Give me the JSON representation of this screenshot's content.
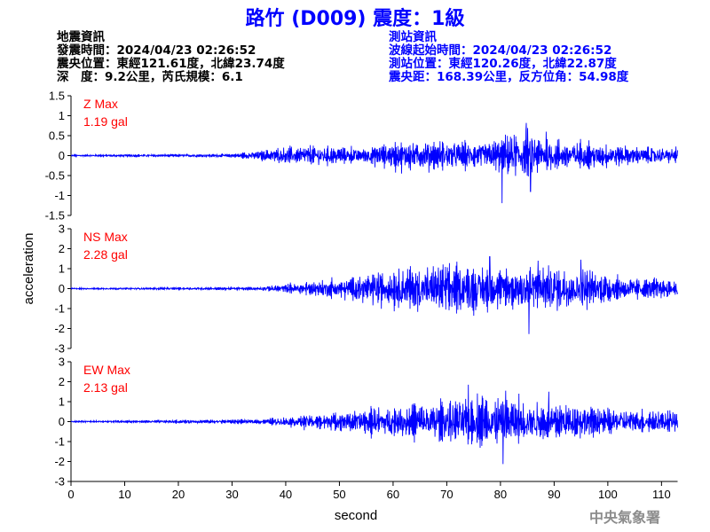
{
  "title": "路竹 (D009) 震度：1級",
  "quake_info": {
    "heading": "地震資訊",
    "origin_time": "發震時間：2024/04/23 02:26:52",
    "epicenter": "震央位置：東經121.61度，北緯23.74度",
    "depth_magnitude": "深　度：9.2公里，芮氏規模：6.1"
  },
  "station_info": {
    "heading": "測站資訊",
    "wave_start": "波線起始時間：2024/04/23 02:26:52",
    "location": "測站位置：東經120.26度，北緯22.87度",
    "distance": "震央距：168.39公里，反方位角：54.98度"
  },
  "credit": "中央氣象署",
  "colors": {
    "title": "#0000ff",
    "trace": "#0000ff",
    "max_label": "#ff0000",
    "station_info": "#0000ff",
    "credit": "#8c8c8c"
  },
  "chart_data": {
    "type": "line",
    "xlabel": "second",
    "ylabel": "acceleration",
    "xlim": [
      0,
      113
    ],
    "x_ticks": [
      0,
      10,
      20,
      30,
      40,
      50,
      60,
      70,
      80,
      90,
      100,
      110
    ],
    "panels": [
      {
        "name": "Z",
        "max_title": "Z Max",
        "max_value": "1.19 gal",
        "ylim": [
          -1.5,
          1.5
        ],
        "y_ticks": [
          1.5,
          1,
          0.5,
          0,
          -0.5,
          -1,
          -1.5
        ],
        "envelope": [
          [
            0,
            0.03
          ],
          [
            30,
            0.06
          ],
          [
            38,
            0.25
          ],
          [
            45,
            0.35
          ],
          [
            55,
            0.25
          ],
          [
            60,
            0.45
          ],
          [
            70,
            0.5
          ],
          [
            75,
            0.45
          ],
          [
            80,
            0.55
          ],
          [
            84,
            0.85
          ],
          [
            88,
            0.6
          ],
          [
            95,
            0.45
          ],
          [
            105,
            0.3
          ],
          [
            113,
            0.25
          ]
        ],
        "peaks": [
          [
            80.3,
            -1.19
          ],
          [
            84.8,
            0.82
          ],
          [
            85.6,
            -0.9
          ],
          [
            88.5,
            0.6
          ]
        ]
      },
      {
        "name": "NS",
        "max_title": "NS Max",
        "max_value": "2.28 gal",
        "ylim": [
          -3,
          3
        ],
        "y_ticks": [
          3,
          2,
          1,
          0,
          -1,
          -2,
          -3
        ],
        "envelope": [
          [
            0,
            0.05
          ],
          [
            35,
            0.1
          ],
          [
            40,
            0.3
          ],
          [
            50,
            0.7
          ],
          [
            60,
            1.3
          ],
          [
            65,
            1.5
          ],
          [
            75,
            1.6
          ],
          [
            80,
            1.5
          ],
          [
            85,
            1.7
          ],
          [
            95,
            1.3
          ],
          [
            103,
            0.8
          ],
          [
            113,
            0.6
          ]
        ],
        "peaks": [
          [
            78,
            1.6
          ],
          [
            85.3,
            -2.28
          ],
          [
            87,
            1.4
          ],
          [
            95,
            1.45
          ]
        ]
      },
      {
        "name": "EW",
        "max_title": "EW Max",
        "max_value": "2.13 gal",
        "ylim": [
          -3,
          3
        ],
        "y_ticks": [
          3,
          2,
          1,
          0,
          -1,
          -2,
          -3
        ],
        "envelope": [
          [
            0,
            0.05
          ],
          [
            35,
            0.15
          ],
          [
            45,
            0.5
          ],
          [
            55,
            0.8
          ],
          [
            65,
            1.2
          ],
          [
            70,
            1.4
          ],
          [
            75,
            1.6
          ],
          [
            80,
            1.7
          ],
          [
            85,
            1.4
          ],
          [
            95,
            1.1
          ],
          [
            105,
            0.8
          ],
          [
            113,
            0.7
          ]
        ],
        "peaks": [
          [
            74,
            1.85
          ],
          [
            80.5,
            -2.13
          ],
          [
            81,
            1.55
          ],
          [
            89,
            1.5
          ]
        ]
      }
    ]
  }
}
